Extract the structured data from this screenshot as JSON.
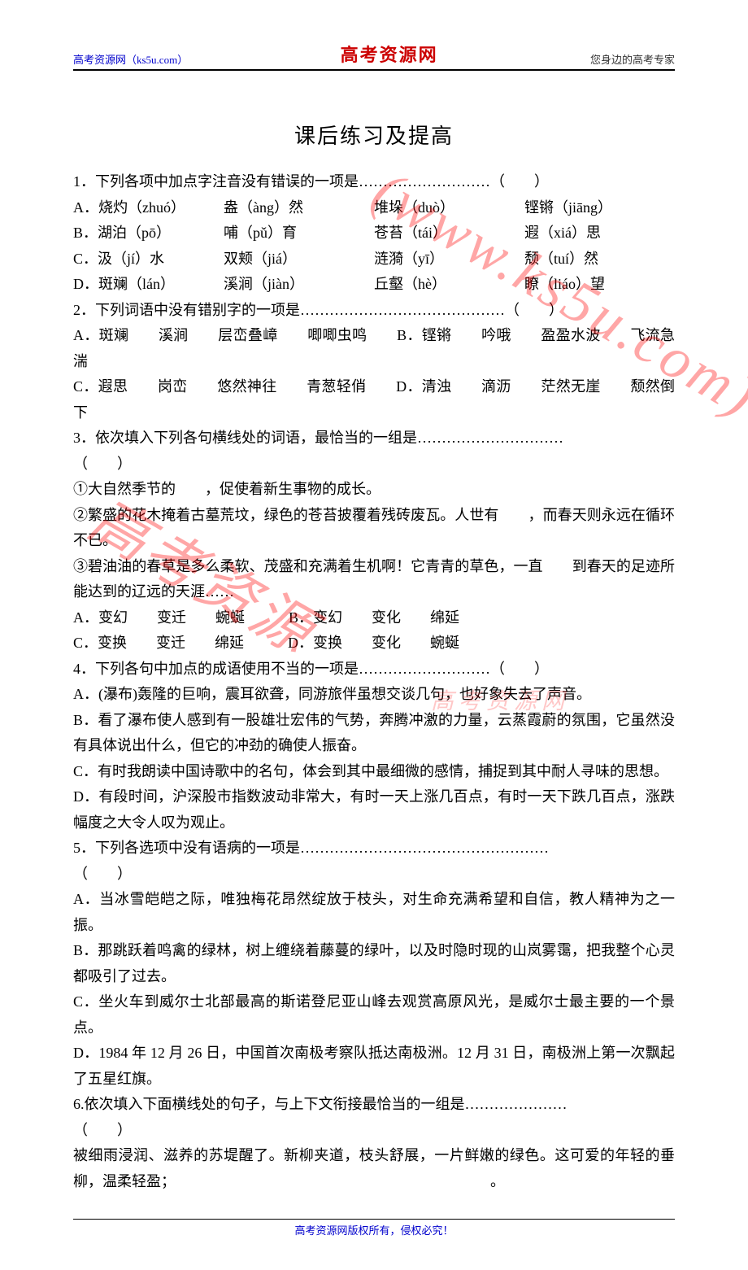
{
  "header": {
    "left": "高考资源网（ks5u.com）",
    "center": "高考资源网",
    "right": "您身边的高考专家"
  },
  "title": "课后练习及提高",
  "watermarks": {
    "w1": "(www.ks5u.com)",
    "w2": "高考资源",
    "w3": "高考资源网"
  },
  "q1": {
    "stem": "1．下列各项中加点字注音没有错误的一项是………………………（　　）",
    "a1": "A．烧灼（zhuó）",
    "a2": "盎（àng）然",
    "a3": "堆垛（duò）",
    "a4": "铿锵（jiāng）",
    "b1": "B．湖泊（pō）",
    "b2": "哺（pǔ）育",
    "b3": "苍苔（tái）",
    "b4": "遐（xiá）思",
    "c1": "C．汲（jí）水",
    "c2": "双颊（jiá）",
    "c3": "涟漪（yī）",
    "c4": "颓（tuí）然",
    "d1": "D．斑斓（lán）",
    "d2": "溪涧（jiàn）",
    "d3": "丘壑（hè）",
    "d4": "瞭（liáo）望"
  },
  "q2": {
    "stem": "2．下列词语中没有错别字的一项是……………………………………（　　）",
    "line1": "A．斑斓　　溪涧　　层峦叠嶂　　唧唧虫鸣　　B．铿锵　　吟哦　　盈盈水波　　飞流急湍",
    "line2": "C．遐思　　岗峦　　悠然神往　　青葱轻俏　　D．清浊　　滴沥　　茫然无崖　　颓然倒下"
  },
  "q3": {
    "stem1": "3．依次填入下列各句横线处的词语，最恰当的一组是…………………………",
    "stem2": "（　　）",
    "s1": "①大自然季节的　　，促使着新生事物的成长。",
    "s2": "②繁盛的花木掩着古墓荒坟，绿色的苍苔披覆着残砖废瓦。人世有　　，而春天则永远在循环不已。",
    "s3": "③碧油油的春草是多么柔软、茂盛和充满着生机啊！它青青的草色，一直　　到春天的足迹所能达到的辽远的天涯……",
    "opts": "A．变幻　　变迁　　蜿蜒　　　B．变幻　　变化　　绵延\nC．变换　　变迁　　绵延　　　D．变换　　变化　　蜿蜒"
  },
  "q4": {
    "stem": "4．下列各句中加点的成语使用不当的一项是………………………（　　）",
    "a": "A．(瀑布)轰隆的巨响，震耳欲聋，同游旅伴虽想交谈几句，也好象失去了声音。",
    "b": "B．看了瀑布使人感到有一股雄壮宏伟的气势，奔腾冲激的力量，云蒸霞蔚的氛围，它虽然没有具体说出什么，但它的冲劲的确使人振奋。",
    "c": "C．有时我朗读中国诗歌中的名句，体会到其中最细微的感情，捕捉到其中耐人寻味的思想。",
    "d": "D．有段时间，沪深股市指数波动非常大，有时一天上涨几百点，有时一天下跌几百点，涨跌幅度之大令人叹为观止。"
  },
  "q5": {
    "stem1": "5．下列各选项中没有语病的一项是……………………………………………",
    "stem2": "（　　）",
    "a": "A．当冰雪皑皑之际，唯独梅花昂然绽放于枝头，对生命充满希望和自信，教人精神为之一振。",
    "b": "B．那跳跃着鸣禽的绿林，树上缠绕着藤蔓的绿叶，以及时隐时现的山岚雾霭，把我整个心灵都吸引了过去。",
    "c": "C．坐火车到威尔士北部最高的斯诺登尼亚山峰去观赏高原风光，是威尔士最主要的一个景点。",
    "d": "D．1984 年 12 月 26 日，中国首次南极考察队抵达南极洲。12 月 31 日，南极洲上第一次飘起了五星红旗。"
  },
  "q6": {
    "stem1": "6.依次填入下面横线处的句子，与上下文衔接最恰当的一组是…………………",
    "stem2": "（　　）",
    "p": "被细雨浸润、滋养的苏堤醒了。新柳夹道，枝头舒展，一片鲜嫩的绿色。这可爱的年轻的垂柳，温柔轻盈；　　　　　　　　　　　　　　　　　　　　　　。"
  },
  "footer": "高考资源网版权所有，侵权必究！"
}
